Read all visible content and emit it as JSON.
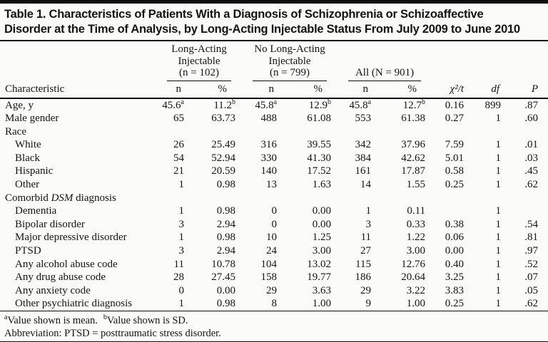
{
  "title": {
    "line1": "Table 1. Characteristics of Patients With a Diagnosis of Schizophrenia or Schizoaffective",
    "line2": "Disorder at the Time of Analysis, by Long-Acting Injectable Status From July 2009 to June 2010"
  },
  "table": {
    "groups": [
      {
        "lines": [
          "Long-Acting",
          "Injectable",
          "(n = 102)"
        ]
      },
      {
        "lines": [
          "No Long-Acting",
          "Injectable",
          "(n = 799)"
        ]
      },
      {
        "lines": [
          "All (N = 901)"
        ]
      }
    ],
    "sub_headers": {
      "characteristic": "Characteristic",
      "n": "n",
      "pct": "%",
      "chi": "χ²/t",
      "df": "df",
      "p": "P"
    },
    "rows": [
      {
        "label": "Age, y",
        "indent": false,
        "section": false,
        "cells": [
          "45.6^a",
          "11.2^b",
          "45.8^a",
          "12.9^b",
          "45.8^a",
          "12.7^b",
          "0.16",
          "899",
          ".87"
        ]
      },
      {
        "label": "Male gender",
        "indent": false,
        "section": false,
        "cells": [
          "65",
          "63.73",
          "488",
          "61.08",
          "553",
          "61.38",
          "0.27",
          "1",
          ".60"
        ]
      },
      {
        "label": "Race",
        "indent": false,
        "section": true,
        "cells": [
          "",
          "",
          "",
          "",
          "",
          "",
          "",
          "",
          ""
        ]
      },
      {
        "label": "White",
        "indent": true,
        "section": false,
        "cells": [
          "26",
          "25.49",
          "316",
          "39.55",
          "342",
          "37.96",
          "7.59",
          "1",
          ".01"
        ]
      },
      {
        "label": "Black",
        "indent": true,
        "section": false,
        "cells": [
          "54",
          "52.94",
          "330",
          "41.30",
          "384",
          "42.62",
          "5.01",
          "1",
          ".03"
        ]
      },
      {
        "label": "Hispanic",
        "indent": true,
        "section": false,
        "cells": [
          "21",
          "20.59",
          "140",
          "17.52",
          "161",
          "17.87",
          "0.58",
          "1",
          ".45"
        ]
      },
      {
        "label": "Other",
        "indent": true,
        "section": false,
        "cells": [
          "1",
          "0.98",
          "13",
          "1.63",
          "14",
          "1.55",
          "0.25",
          "1",
          ".62"
        ]
      },
      {
        "label_pre": "Comorbid ",
        "label_italic": "DSM",
        "label_post": " diagnosis",
        "indent": false,
        "section": true,
        "cells": [
          "",
          "",
          "",
          "",
          "",
          "",
          "",
          "",
          ""
        ]
      },
      {
        "label": "Dementia",
        "indent": true,
        "section": false,
        "cells": [
          "1",
          "0.98",
          "0",
          "0.00",
          "1",
          "0.11",
          "",
          "1",
          ""
        ]
      },
      {
        "label": "Bipolar disorder",
        "indent": true,
        "section": false,
        "cells": [
          "3",
          "2.94",
          "0",
          "0.00",
          "3",
          "0.33",
          "0.38",
          "1",
          ".54"
        ]
      },
      {
        "label": "Major depressive disorder",
        "indent": true,
        "section": false,
        "cells": [
          "1",
          "0.98",
          "10",
          "1.25",
          "11",
          "1.22",
          "0.06",
          "1",
          ".81"
        ]
      },
      {
        "label": "PTSD",
        "indent": true,
        "section": false,
        "cells": [
          "3",
          "2.94",
          "24",
          "3.00",
          "27",
          "3.00",
          "0.00",
          "1",
          ".97"
        ]
      },
      {
        "label": "Any alcohol abuse code",
        "indent": true,
        "section": false,
        "cells": [
          "11",
          "10.78",
          "104",
          "13.02",
          "115",
          "12.76",
          "0.40",
          "1",
          ".52"
        ]
      },
      {
        "label": "Any drug abuse code",
        "indent": true,
        "section": false,
        "cells": [
          "28",
          "27.45",
          "158",
          "19.77",
          "186",
          "20.64",
          "3.25",
          "1",
          ".07"
        ]
      },
      {
        "label": "Any anxiety code",
        "indent": true,
        "section": false,
        "cells": [
          "0",
          "0.00",
          "29",
          "3.63",
          "29",
          "3.22",
          "3.83",
          "1",
          ".05"
        ]
      },
      {
        "label": "Other psychiatric diagnosis",
        "indent": true,
        "section": false,
        "cells": [
          "1",
          "0.98",
          "8",
          "1.00",
          "9",
          "1.00",
          "0.25",
          "1",
          ".62"
        ]
      }
    ]
  },
  "footnotes": {
    "sup_a": "a",
    "note_a": "Value shown is mean.",
    "sup_b": "b",
    "note_b": "Value shown is SD.",
    "abbreviation": "Abbreviation: PTSD = posttraumatic stress disorder."
  },
  "colors": {
    "rule": "#0c0c0c",
    "text": "#141414",
    "background": "#fbfbf9"
  }
}
